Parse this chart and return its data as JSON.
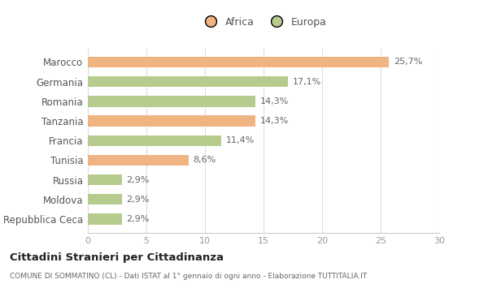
{
  "categories": [
    "Repubblica Ceca",
    "Moldova",
    "Russia",
    "Tunisia",
    "Francia",
    "Tanzania",
    "Romania",
    "Germania",
    "Marocco"
  ],
  "values": [
    2.9,
    2.9,
    2.9,
    8.6,
    11.4,
    14.3,
    14.3,
    17.1,
    25.7
  ],
  "labels": [
    "2,9%",
    "2,9%",
    "2,9%",
    "8,6%",
    "11,4%",
    "14,3%",
    "14,3%",
    "17,1%",
    "25,7%"
  ],
  "colors": [
    "#b5cc8e",
    "#b5cc8e",
    "#b5cc8e",
    "#f0b482",
    "#b5cc8e",
    "#f0b482",
    "#b5cc8e",
    "#b5cc8e",
    "#f0b482"
  ],
  "xlim": [
    0,
    30
  ],
  "xticks": [
    0,
    5,
    10,
    15,
    20,
    25,
    30
  ],
  "africa_color": "#f0b482",
  "europa_color": "#b5cc8e",
  "title": "Cittadini Stranieri per Cittadinanza",
  "subtitle": "COMUNE DI SOMMATINO (CL) - Dati ISTAT al 1° gennaio di ogni anno - Elaborazione TUTTITALIA.IT",
  "bg_color": "#ffffff",
  "bar_height": 0.55
}
